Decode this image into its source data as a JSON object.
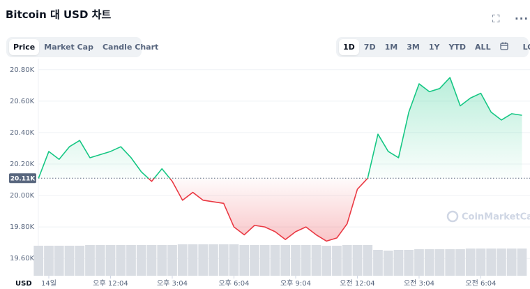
{
  "header": {
    "title": "Bitcoin 대 USD 차트"
  },
  "tabs": [
    "Price",
    "Market Cap",
    "Candle Chart"
  ],
  "active_tab": 0,
  "ranges": [
    "1D",
    "7D",
    "1M",
    "3M",
    "1Y",
    "YTD",
    "ALL"
  ],
  "active_range": 0,
  "log_button": "LOG",
  "watermark": "CoinMarketCap",
  "chart_data": {
    "type": "line",
    "x_axis_label": "USD",
    "categories": [
      null,
      "14일",
      null,
      null,
      null,
      null,
      null,
      "오후 12:04",
      null,
      null,
      null,
      null,
      null,
      "오후 3:04",
      null,
      null,
      null,
      null,
      null,
      "오후 6:04",
      null,
      null,
      null,
      null,
      null,
      "오후 9:04",
      null,
      null,
      null,
      null,
      null,
      "오전 12:04",
      null,
      null,
      null,
      null,
      null,
      "오전 3:04",
      null,
      null,
      null,
      null,
      null,
      "오전 6:04",
      null,
      null,
      null,
      null
    ],
    "values": [
      20.11,
      20.28,
      20.23,
      20.31,
      20.35,
      20.24,
      20.26,
      20.28,
      20.31,
      20.24,
      20.15,
      20.09,
      20.17,
      20.09,
      19.97,
      20.02,
      19.97,
      19.96,
      19.95,
      19.8,
      19.75,
      19.81,
      19.8,
      19.77,
      19.72,
      19.77,
      19.8,
      19.75,
      19.71,
      19.73,
      19.82,
      20.04,
      20.11,
      20.39,
      20.28,
      20.24,
      20.53,
      20.71,
      20.66,
      20.68,
      20.75,
      20.57,
      20.62,
      20.65,
      20.53,
      20.48,
      20.52,
      20.51
    ],
    "volume": [
      43,
      43,
      43,
      43,
      43,
      44,
      44,
      44,
      44,
      44,
      44,
      44,
      44,
      44,
      45,
      45,
      45,
      45,
      45,
      45,
      44,
      44,
      44,
      44,
      44,
      44,
      44,
      44,
      43,
      43,
      44,
      44,
      44,
      37,
      36,
      37,
      37,
      38,
      38,
      38,
      38,
      38,
      39,
      39,
      39,
      39,
      39,
      39
    ],
    "color_up": "#16c784",
    "color_down": "#ea3943",
    "volume_color": "#d9dde3",
    "baseline": 20.11,
    "baseline_label": "20.11K",
    "ylim": [
      19.49,
      20.87
    ],
    "yticks": [
      {
        "value": 19.6,
        "label": "19.60K"
      },
      {
        "value": 19.8,
        "label": "19.80K"
      },
      {
        "value": 20.0,
        "label": "20.00K"
      },
      {
        "value": 20.2,
        "label": "20.20K"
      },
      {
        "value": 20.4,
        "label": "20.40K"
      },
      {
        "value": 20.6,
        "label": "20.60K"
      },
      {
        "value": 20.8,
        "label": "20.80K"
      }
    ],
    "grid": true
  }
}
